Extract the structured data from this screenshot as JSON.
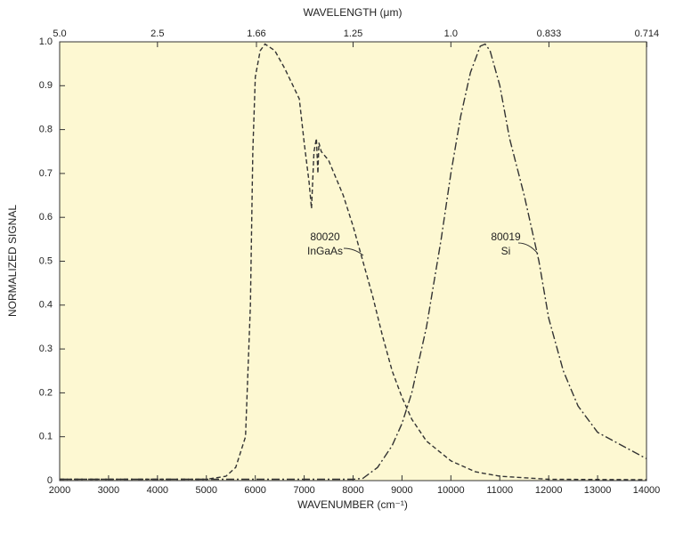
{
  "chart_data": {
    "type": "line",
    "xlabel": "WAVENUMBER (cm⁻¹)",
    "ylabel": "NORMALIZED SIGNAL",
    "x2label": "WAVELENGTH (μm)",
    "xlim": [
      2000,
      14000
    ],
    "ylim": [
      0,
      1
    ],
    "xticks": [
      2000,
      3000,
      4000,
      5000,
      6000,
      7000,
      8000,
      9000,
      10000,
      11000,
      12000,
      13000,
      14000
    ],
    "yticks": [
      0,
      0.1,
      0.2,
      0.3,
      0.4,
      0.5,
      0.6,
      0.7,
      0.8,
      0.9,
      {
        "value": 1,
        "label": "1.0"
      }
    ],
    "x2ticks": [
      {
        "value": 2000,
        "label": "5.0"
      },
      {
        "value": 4000,
        "label": "2.5"
      },
      {
        "value": 6024,
        "label": "1.66"
      },
      {
        "value": 8000,
        "label": "1.25"
      },
      {
        "value": 10000,
        "label": "1.0"
      },
      {
        "value": 12005,
        "label": "0.833"
      },
      {
        "value": 14006,
        "label": "0.714"
      }
    ],
    "background": "#fdf8d2",
    "series": [
      {
        "color": "#333333",
        "dash": "5,3",
        "x": [
          2000,
          5000,
          5400,
          5600,
          5800,
          5900,
          5950,
          6000,
          6100,
          6200,
          6400,
          6600,
          6900,
          7000,
          7100,
          7150,
          7200,
          7250,
          7280,
          7300,
          7350,
          7500,
          7800,
          8000,
          8200,
          8400,
          8600,
          8800,
          9000,
          9200,
          9500,
          10000,
          10500,
          11000,
          12000,
          14000
        ],
        "values": [
          0.003,
          0.003,
          0.01,
          0.03,
          0.1,
          0.4,
          0.75,
          0.92,
          0.98,
          0.995,
          0.98,
          0.94,
          0.87,
          0.77,
          0.68,
          0.62,
          0.75,
          0.78,
          0.7,
          0.77,
          0.75,
          0.73,
          0.65,
          0.58,
          0.5,
          0.42,
          0.33,
          0.25,
          0.19,
          0.14,
          0.09,
          0.045,
          0.02,
          0.01,
          0.003,
          0.002
        ]
      },
      {
        "color": "#333333",
        "dash": "9,3,2,3",
        "x": [
          2000,
          8000,
          8200,
          8500,
          8800,
          9000,
          9200,
          9500,
          9800,
          10000,
          10200,
          10400,
          10600,
          10700,
          10800,
          11000,
          11200,
          11500,
          11800,
          12000,
          12300,
          12600,
          13000,
          13500,
          14000
        ],
        "values": [
          0.003,
          0.003,
          0.005,
          0.03,
          0.08,
          0.13,
          0.2,
          0.35,
          0.55,
          0.7,
          0.83,
          0.93,
          0.99,
          0.995,
          0.98,
          0.9,
          0.78,
          0.65,
          0.5,
          0.37,
          0.25,
          0.17,
          0.11,
          0.08,
          0.05
        ]
      }
    ],
    "annotations": [
      {
        "lines": [
          "80020",
          "InGaAs"
        ]
      },
      {
        "lines": [
          "80019",
          "Si"
        ]
      }
    ]
  }
}
